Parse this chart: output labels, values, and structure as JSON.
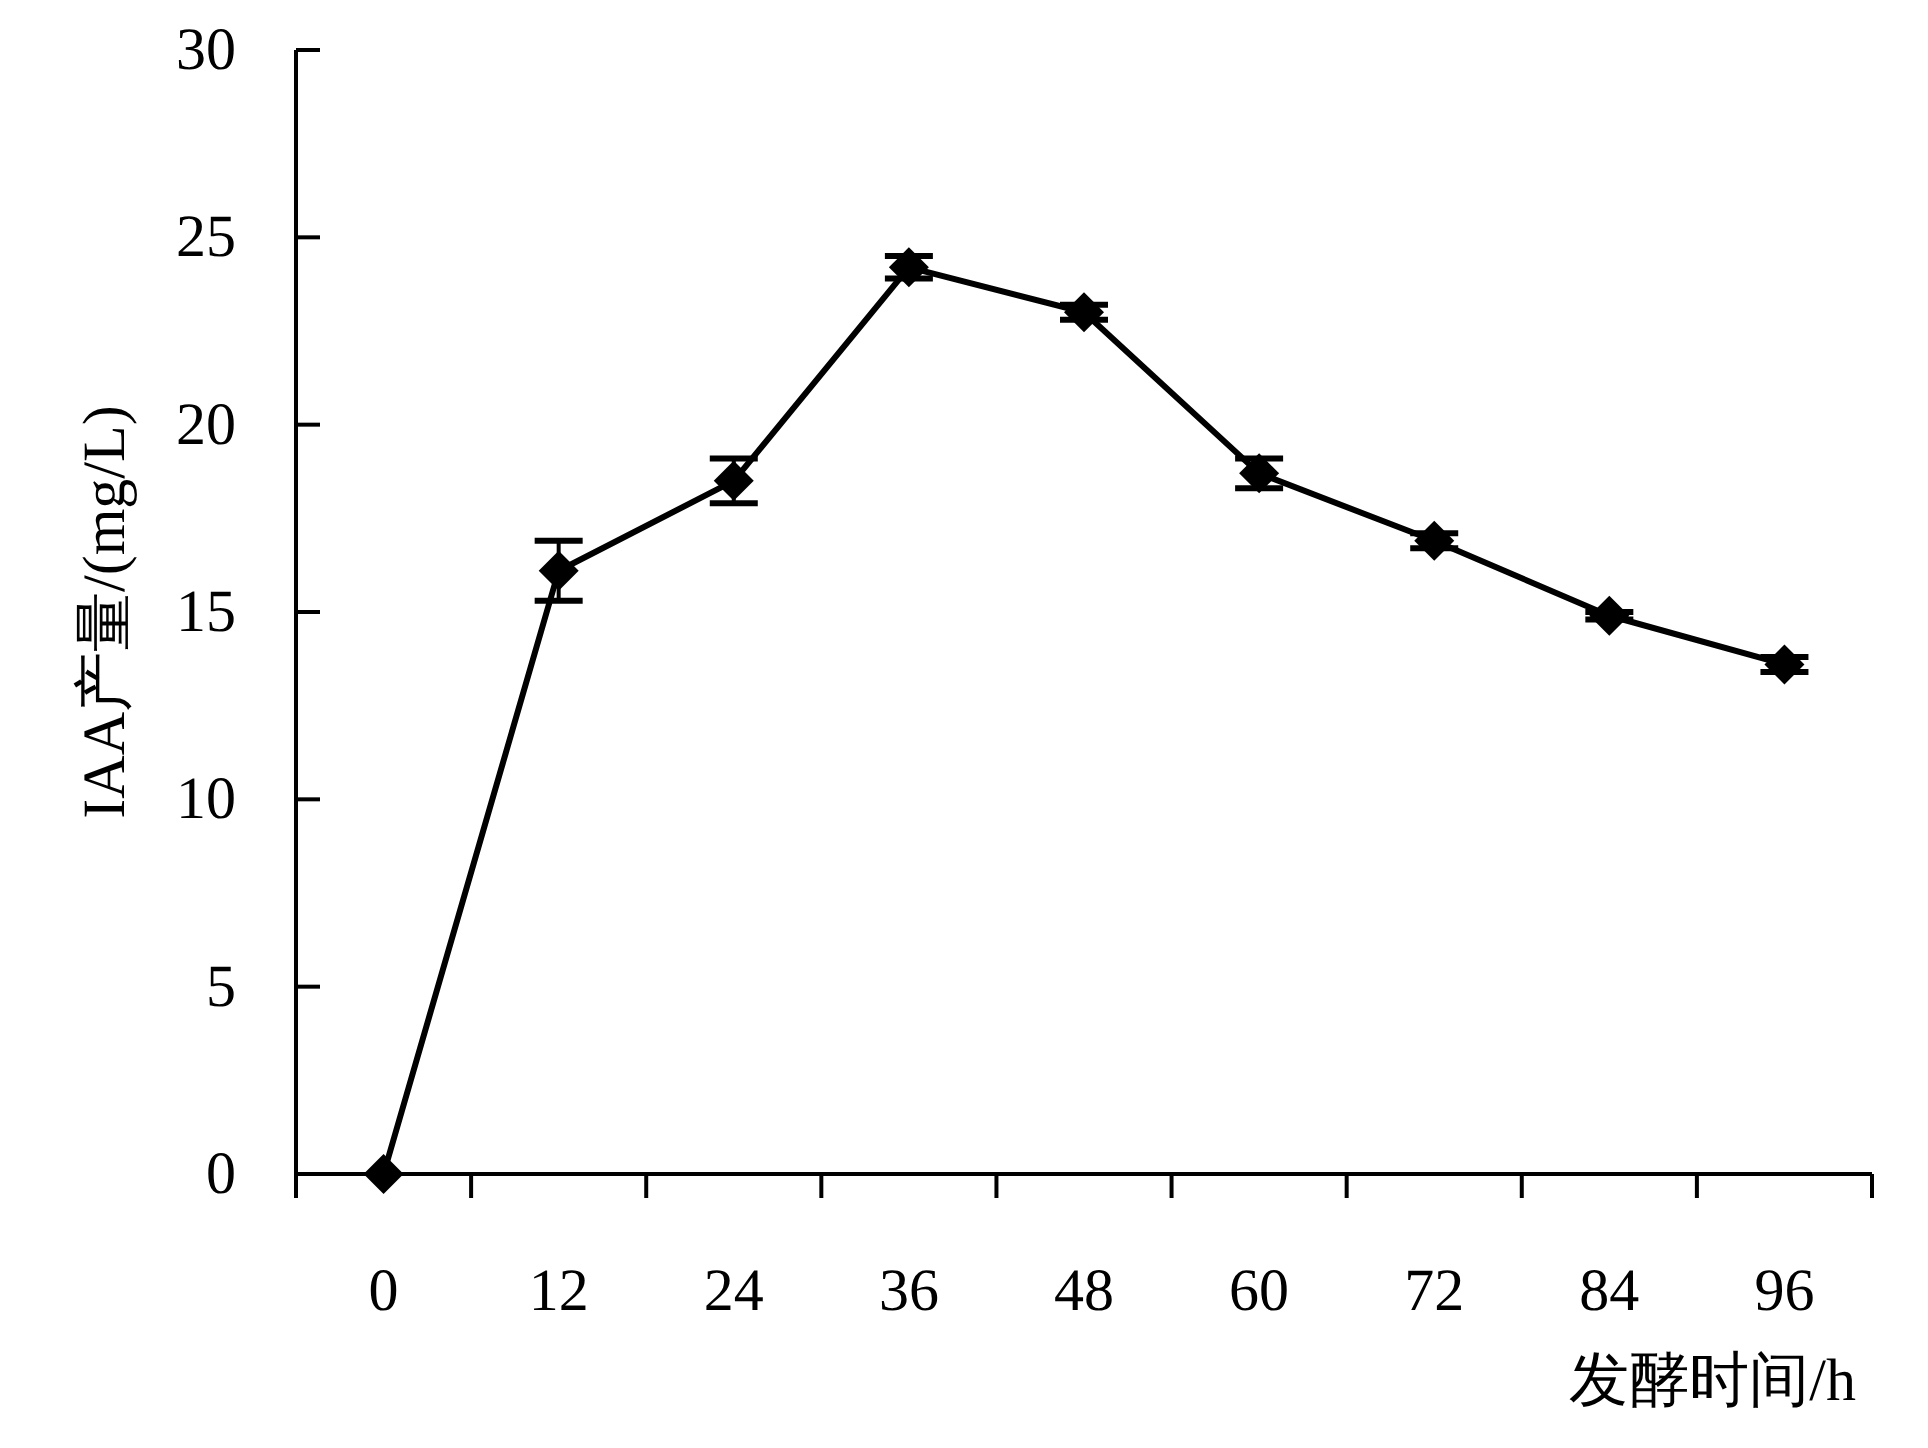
{
  "chart_data": {
    "type": "line",
    "xlabel": "发酵时间/h",
    "ylabel": "IAA产量/(mg/L)",
    "categories": [
      "0",
      "12",
      "24",
      "36",
      "48",
      "60",
      "72",
      "84",
      "96"
    ],
    "series": [
      {
        "color": "#000000",
        "values": [
          0,
          16.1,
          18.5,
          24.2,
          23.0,
          18.7,
          16.9,
          14.9,
          13.6
        ],
        "errors": [
          null,
          0.8,
          0.6,
          0.3,
          0.2,
          0.4,
          0.2,
          0.1,
          0.2
        ]
      }
    ],
    "ylim": [
      0,
      30
    ],
    "yticks": [
      0,
      5,
      10,
      15,
      20,
      25,
      30
    ],
    "marker": "diamond",
    "line_style": "solid",
    "grid": false
  }
}
